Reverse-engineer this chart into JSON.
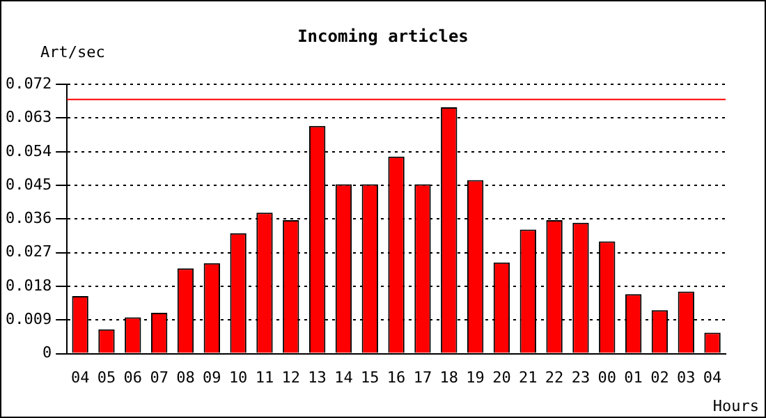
{
  "chart_data": {
    "type": "bar",
    "title": "Incoming articles",
    "ylabel": "Art/sec",
    "xlabel": "Hours",
    "categories": [
      "04",
      "05",
      "06",
      "07",
      "08",
      "09",
      "10",
      "11",
      "12",
      "13",
      "14",
      "15",
      "16",
      "17",
      "18",
      "19",
      "20",
      "21",
      "22",
      "23",
      "00",
      "01",
      "02",
      "03",
      "04"
    ],
    "values": [
      0.0154,
      0.0065,
      0.0097,
      0.0109,
      0.0228,
      0.0242,
      0.0322,
      0.0377,
      0.0357,
      0.0609,
      0.0453,
      0.0453,
      0.0527,
      0.0453,
      0.0659,
      0.0464,
      0.0244,
      0.0332,
      0.0357,
      0.035,
      0.03,
      0.0159,
      0.0116,
      0.0166,
      0.0056
    ],
    "color": "#ff0000",
    "ylim": [
      0,
      0.072
    ],
    "yticks": [
      {
        "value": 0,
        "label": "0"
      },
      0.009,
      0.018,
      0.027,
      0.036,
      0.045,
      0.054,
      0.063,
      0.072
    ],
    "ref_lines": [
      {
        "axis": "y",
        "value": 0.068,
        "color": "#ff0000"
      }
    ],
    "grid": "y",
    "line_style": "dotted",
    "legend": false
  }
}
